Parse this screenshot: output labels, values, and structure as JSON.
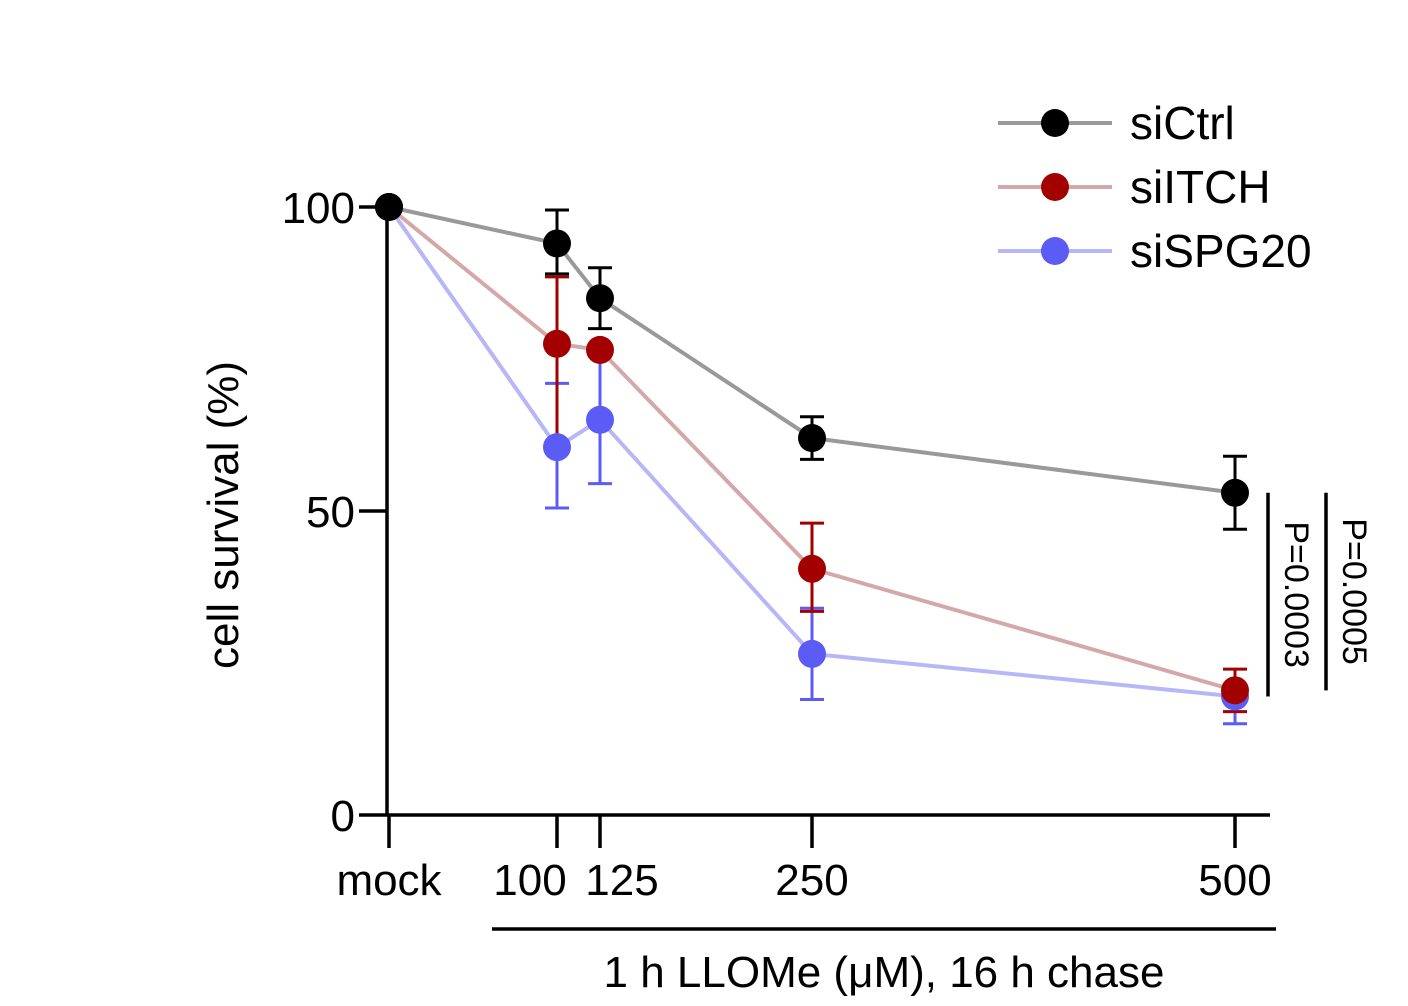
{
  "chart_data": {
    "type": "line",
    "title": "",
    "ylabel": "cell survival (%)",
    "xlabel": "1 h LLOMe (μM), 16 h chase",
    "ylim": [
      0,
      100
    ],
    "yticks": [
      0,
      50,
      100
    ],
    "y_tick_labels": [
      "0",
      "50",
      "100"
    ],
    "categories": [
      "mock",
      "100",
      "125",
      "250",
      "500"
    ],
    "x": [
      0,
      100,
      125,
      250,
      500
    ],
    "series": [
      {
        "name": "siCtrl",
        "marker_color": "#000000",
        "line_color": "#999999",
        "values": [
          100,
          94,
          85,
          62,
          53
        ],
        "err_low": [
          0,
          5,
          5,
          3.5,
          6
        ],
        "err_high": [
          0,
          5.5,
          5,
          3.5,
          6
        ]
      },
      {
        "name": "siITCH",
        "marker_color": "#a30000",
        "line_color": "#d4a8a8",
        "values": [
          100,
          77.5,
          76.5,
          40.5,
          20.5
        ],
        "err_low": [
          0,
          16,
          0,
          7,
          3.5
        ],
        "err_high": [
          0,
          11,
          0,
          7.5,
          3.5
        ]
      },
      {
        "name": "siSPG20",
        "marker_color": "#5b5bf5",
        "line_color": "#b7b7f7",
        "values": [
          100,
          60.5,
          65,
          26.5,
          19.5
        ],
        "err_low": [
          0,
          10,
          10.5,
          7.5,
          4.5
        ],
        "err_high": [
          0,
          10.5,
          10.5,
          7.5,
          0
        ]
      }
    ],
    "legend": {
      "position": "top-right",
      "entries": [
        "siCtrl",
        "siITCH",
        "siSPG20"
      ]
    },
    "annotations": [
      {
        "text": "P=0.0003",
        "compares": [
          "siCtrl",
          "siSPG20"
        ],
        "at": "500"
      },
      {
        "text": "P=0.0005",
        "compares": [
          "siCtrl",
          "siITCH"
        ],
        "at": "500"
      }
    ]
  }
}
